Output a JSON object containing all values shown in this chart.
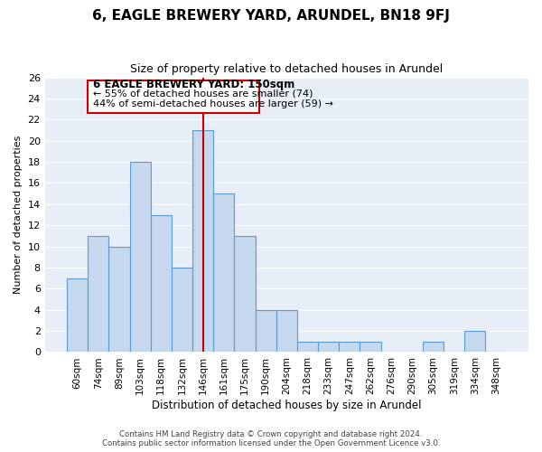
{
  "title": "6, EAGLE BREWERY YARD, ARUNDEL, BN18 9FJ",
  "subtitle": "Size of property relative to detached houses in Arundel",
  "xlabel": "Distribution of detached houses by size in Arundel",
  "ylabel": "Number of detached properties",
  "bar_labels": [
    "60sqm",
    "74sqm",
    "89sqm",
    "103sqm",
    "118sqm",
    "132sqm",
    "146sqm",
    "161sqm",
    "175sqm",
    "190sqm",
    "204sqm",
    "218sqm",
    "233sqm",
    "247sqm",
    "262sqm",
    "276sqm",
    "290sqm",
    "305sqm",
    "319sqm",
    "334sqm",
    "348sqm"
  ],
  "bar_values": [
    7,
    11,
    10,
    18,
    13,
    8,
    21,
    15,
    11,
    4,
    4,
    1,
    1,
    1,
    1,
    0,
    0,
    1,
    0,
    2,
    0
  ],
  "bar_color": "#c5d8ed",
  "bar_edge_color": "#5b9bd5",
  "highlight_index": 6,
  "highlight_line_color": "#cc0000",
  "ylim": [
    0,
    26
  ],
  "yticks": [
    0,
    2,
    4,
    6,
    8,
    10,
    12,
    14,
    16,
    18,
    20,
    22,
    24,
    26
  ],
  "annotation_title": "6 EAGLE BREWERY YARD: 150sqm",
  "annotation_line1": "← 55% of detached houses are smaller (74)",
  "annotation_line2": "44% of semi-detached houses are larger (59) →",
  "annotation_box_edge": "#cc0000",
  "footer_line1": "Contains HM Land Registry data © Crown copyright and database right 2024.",
  "footer_line2": "Contains public sector information licensed under the Open Government Licence v3.0.",
  "background_color": "#ffffff",
  "plot_bg_color": "#e8eef8"
}
